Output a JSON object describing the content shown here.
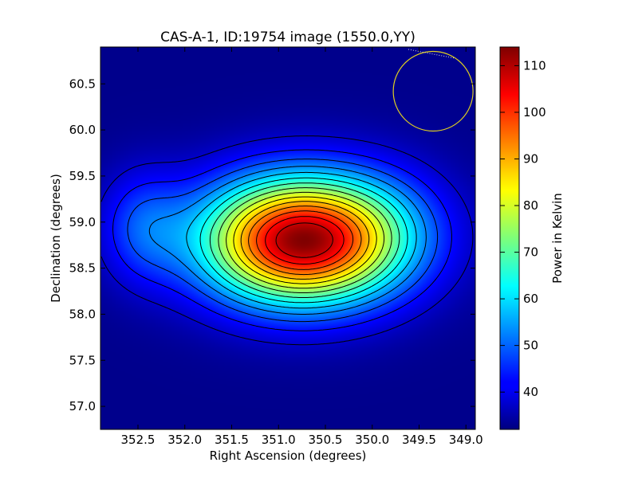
{
  "chart_data": {
    "type": "heatmap",
    "title": "CAS-A-1, ID:19754 image (1550.0,YY)",
    "xlabel": "Right Ascension (degrees)",
    "ylabel": "Declination (degrees)",
    "colorbar_label": "Power in Kelvin",
    "xlim": [
      352.9,
      348.9
    ],
    "ylim": [
      56.75,
      60.9
    ],
    "x_ticks": [
      352.5,
      352.0,
      351.5,
      351.0,
      350.5,
      350.0,
      349.5,
      349.0
    ],
    "x_tick_labels": [
      "352.5",
      "352.0",
      "351.5",
      "351.0",
      "350.5",
      "350.0",
      "349.5",
      "349.0"
    ],
    "y_ticks": [
      57.0,
      57.5,
      58.0,
      58.5,
      59.0,
      59.5,
      60.0,
      60.5
    ],
    "y_tick_labels": [
      "57.0",
      "57.5",
      "58.0",
      "58.5",
      "59.0",
      "59.5",
      "60.0",
      "60.5"
    ],
    "colorbar_range": [
      32,
      114
    ],
    "colorbar_ticks": [
      40,
      50,
      60,
      70,
      80,
      90,
      100,
      110
    ],
    "colorbar_tick_labels": [
      "40",
      "50",
      "60",
      "70",
      "80",
      "90",
      "100",
      "110"
    ],
    "colormap": "jet",
    "peak": {
      "ra": 350.75,
      "dec": 58.8,
      "value": 113
    },
    "secondary_peak": {
      "ra": 352.45,
      "dec": 58.95,
      "value": 46
    },
    "beam": {
      "ra": 349.35,
      "dec": 60.42,
      "radius_deg": 0.37,
      "color": "#e0d020"
    },
    "contour_color": "#000000"
  }
}
